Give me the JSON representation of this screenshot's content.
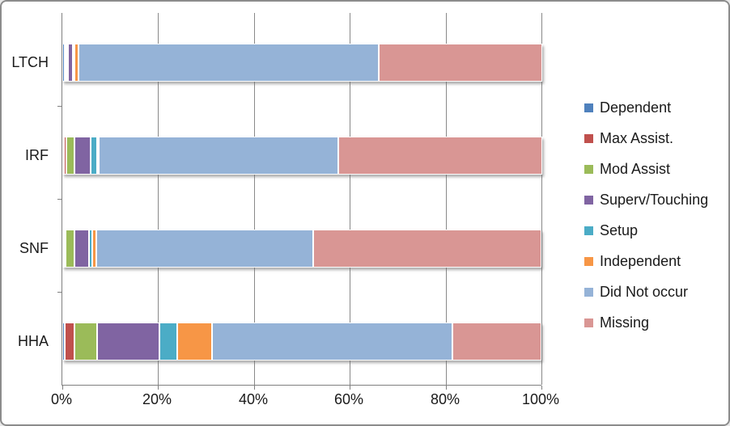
{
  "figure": {
    "background": "#ffffff",
    "border_color": "#8c8c8c",
    "gridline_color": "#898989",
    "text_color": "#1a1a1a"
  },
  "chart_data": {
    "type": "bar",
    "orientation": "horizontal",
    "stacked": true,
    "title": "",
    "xlabel": "",
    "ylabel": "",
    "grid": true,
    "legend_position": "right",
    "categories": [
      "LTCH",
      "IRF",
      "SNF",
      "HHA"
    ],
    "series": [
      {
        "name": "Dependent",
        "color": "#4F81BD",
        "values": [
          0.5,
          0.4,
          0.3,
          0.5
        ]
      },
      {
        "name": "Max Assist.",
        "color": "#C0504D",
        "values": [
          0.3,
          0.4,
          0.4,
          2.0
        ]
      },
      {
        "name": "Mod Assist",
        "color": "#9BBB59",
        "values": [
          0.3,
          1.8,
          1.8,
          4.7
        ]
      },
      {
        "name": "Superv/Touching",
        "color": "#8064A2",
        "values": [
          1.0,
          3.3,
          3.0,
          13.0
        ]
      },
      {
        "name": "Setup",
        "color": "#4BACC6",
        "values": [
          0.3,
          1.4,
          0.8,
          3.8
        ]
      },
      {
        "name": "Independent",
        "color": "#F79646",
        "values": [
          0.8,
          0.2,
          0.7,
          7.3
        ]
      },
      {
        "name": "Did Not occur",
        "color": "#95B3D7",
        "values": [
          62.8,
          50.0,
          45.4,
          50.1
        ]
      },
      {
        "name": "Missing",
        "color": "#D99694",
        "values": [
          34.0,
          42.5,
          47.6,
          18.6
        ]
      }
    ],
    "x_axis": {
      "min": 0,
      "max": 100,
      "tick_labels": [
        "0%",
        "20%",
        "40%",
        "60%",
        "80%",
        "100%"
      ]
    }
  }
}
